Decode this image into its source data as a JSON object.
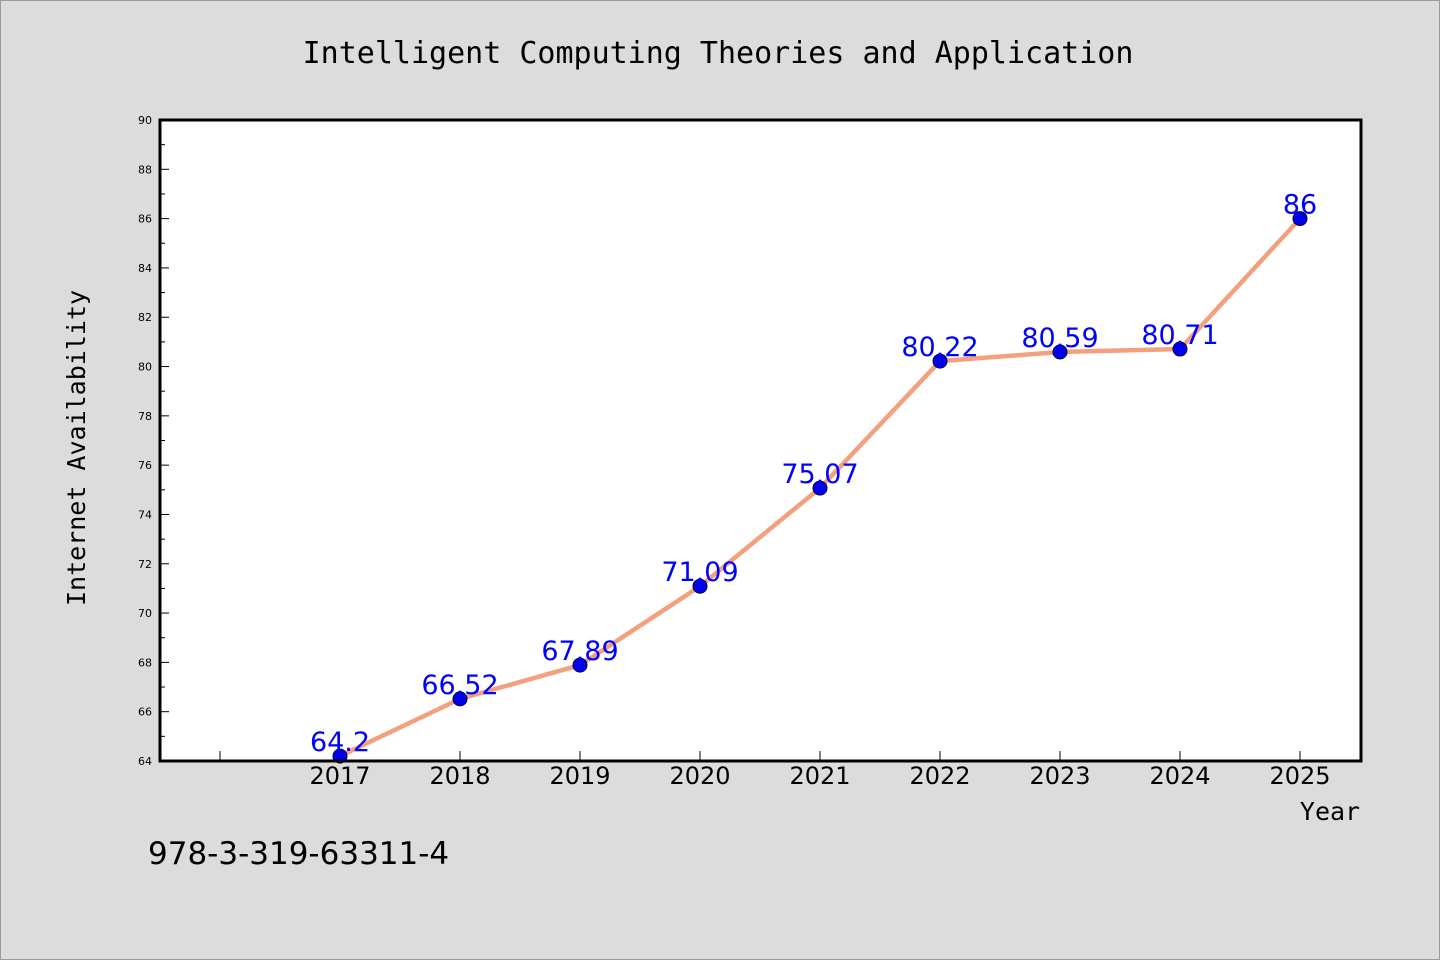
{
  "chart_data": {
    "type": "line",
    "title": "Intelligent Computing Theories and Application",
    "xlabel": "Year",
    "ylabel": "Internet Availability",
    "categories": [
      "2017",
      "2018",
      "2019",
      "2020",
      "2021",
      "2022",
      "2023",
      "2024",
      "2025"
    ],
    "series": [
      {
        "values": [
          64.2,
          66.52,
          67.89,
          71.09,
          75.07,
          80.22,
          80.59,
          80.71,
          86
        ],
        "labels": [
          "64.2",
          "66.52",
          "67.89",
          "71.09",
          "75.07",
          "80.22",
          "80.59",
          "80.71",
          "86"
        ],
        "line_color": "#f4a07e",
        "marker_color": "#0000ee"
      }
    ],
    "ylim": [
      64,
      90
    ],
    "yticks": [
      "64",
      "66",
      "68",
      "70",
      "72",
      "74",
      "76",
      "78",
      "80",
      "82",
      "84",
      "86",
      "88",
      "90"
    ],
    "grid": false,
    "legend": "none",
    "label_color": "#0000ff",
    "background": "#dcdcdc",
    "plot_background": "#ffffff"
  },
  "annotation": "978-3-319-63311-4"
}
